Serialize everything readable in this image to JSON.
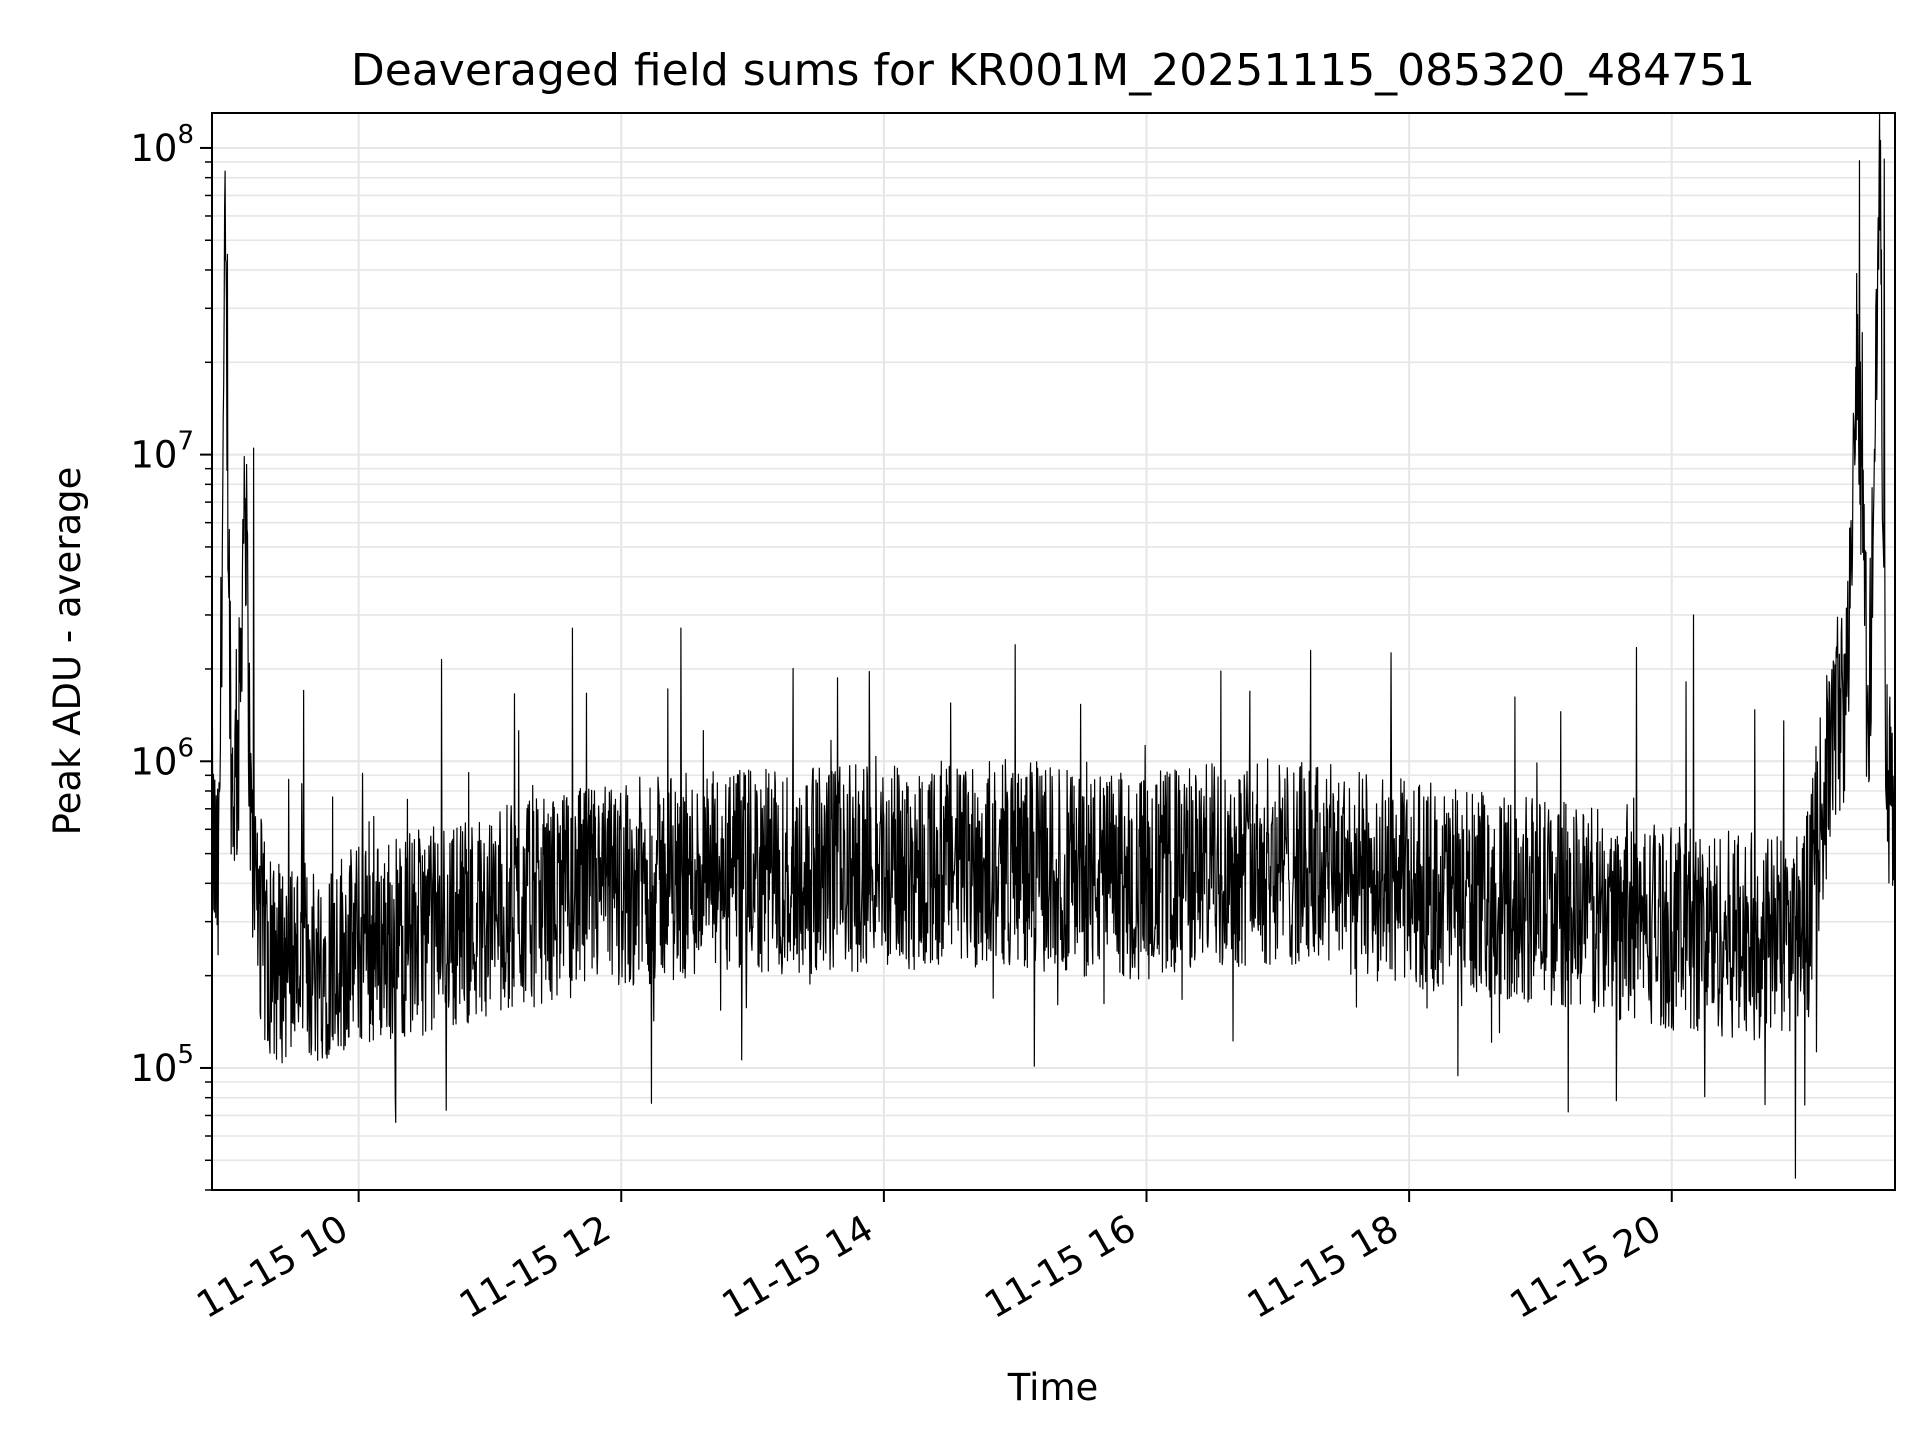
{
  "chart_data": {
    "type": "line",
    "title": "Deaveraged field sums for KR001M_20251115_085320_484751",
    "xlabel": "Time",
    "ylabel": "Peak ADU - average",
    "x_axis_type": "datetime",
    "y_scale": "log",
    "xlim": [
      "2025-11-15 08:53",
      "2025-11-15 21:42"
    ],
    "ylim": [
      40000,
      130000000
    ],
    "x_tick_labels": [
      "11-15 10",
      "11-15 12",
      "11-15 14",
      "11-15 16",
      "11-15 18",
      "11-15 20"
    ],
    "x_tick_values": [
      "2025-11-15 10:00",
      "2025-11-15 12:00",
      "2025-11-15 14:00",
      "2025-11-15 16:00",
      "2025-11-15 18:00",
      "2025-11-15 20:00"
    ],
    "y_ticks": [
      {
        "base": "10",
        "exp": "5",
        "value": 100000
      },
      {
        "base": "10",
        "exp": "6",
        "value": 1000000
      },
      {
        "base": "10",
        "exp": "7",
        "value": 10000000
      },
      {
        "base": "10",
        "exp": "8",
        "value": 100000000
      }
    ],
    "grid": true,
    "line_color": "#000000",
    "grid_color": "#e6e6e6",
    "series": [
      {
        "x": [
          "2025-11-15 08:53",
          "2025-11-15 08:56",
          "2025-11-15 08:59",
          "2025-11-15 09:02",
          "2025-11-15 09:05",
          "2025-11-15 09:08",
          "2025-11-15 09:11",
          "2025-11-15 09:14",
          "2025-11-15 09:17",
          "2025-11-15 09:20",
          "2025-11-15 09:30",
          "2025-11-15 09:40",
          "2025-11-15 09:50",
          "2025-11-15 10:00",
          "2025-11-15 10:30",
          "2025-11-15 11:00",
          "2025-11-15 11:30",
          "2025-11-15 12:00",
          "2025-11-15 12:30",
          "2025-11-15 13:00",
          "2025-11-15 13:30",
          "2025-11-15 14:00",
          "2025-11-15 14:30",
          "2025-11-15 15:00",
          "2025-11-15 15:30",
          "2025-11-15 16:00",
          "2025-11-15 16:30",
          "2025-11-15 17:00",
          "2025-11-15 17:30",
          "2025-11-15 18:00",
          "2025-11-15 18:30",
          "2025-11-15 19:00",
          "2025-11-15 19:30",
          "2025-11-15 20:00",
          "2025-11-15 20:30",
          "2025-11-15 21:00",
          "2025-11-15 21:15",
          "2025-11-15 21:20",
          "2025-11-15 21:25",
          "2025-11-15 21:30",
          "2025-11-15 21:35",
          "2025-11-15 21:38",
          "2025-11-15 21:42"
        ],
        "y": [
          600000,
          350000,
          45000000,
          800000,
          1000000,
          10000000,
          500000,
          350000,
          250000,
          220000,
          230000,
          220000,
          240000,
          250000,
          280000,
          320000,
          360000,
          400000,
          420000,
          430000,
          440000,
          450000,
          460000,
          470000,
          430000,
          420000,
          460000,
          470000,
          440000,
          400000,
          370000,
          350000,
          320000,
          290000,
          270000,
          270000,
          1400000,
          1600000,
          25000000,
          1100000,
          90000000,
          900000,
          600000
        ]
      }
    ],
    "peaks": [
      {
        "x": "2025-11-15 09:00",
        "y": 45000000
      },
      {
        "x": "2025-11-15 09:12",
        "y": 10500000
      },
      {
        "x": "2025-11-15 15:00",
        "y": 2400000
      },
      {
        "x": "2025-11-15 17:15",
        "y": 2300000
      },
      {
        "x": "2025-11-15 20:10",
        "y": 3000000
      },
      {
        "x": "2025-11-15 21:27",
        "y": 25000000
      },
      {
        "x": "2025-11-15 21:37",
        "y": 92000000
      }
    ]
  }
}
